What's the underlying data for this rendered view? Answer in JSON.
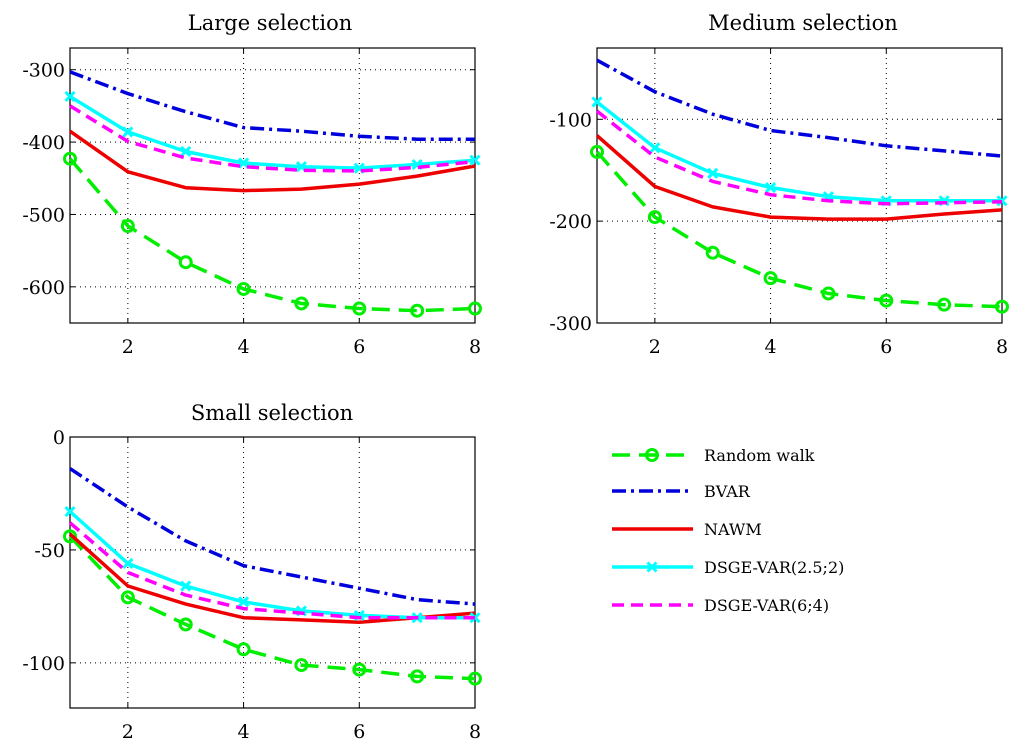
{
  "legend": {
    "entries": [
      {
        "series": "Random walk",
        "label": "Random walk"
      },
      {
        "series": "BVAR",
        "label": "BVAR"
      },
      {
        "series": "NAWM",
        "label": "NAWM"
      },
      {
        "series": "DSGE-VAR(2.5;2)",
        "label": "DSGE-VAR(2.5;2)"
      },
      {
        "series": "DSGE-VAR(6;4)",
        "label": "DSGE-VAR(6;4)"
      }
    ]
  },
  "styles": {
    "Random walk": {
      "color": "#00ee00",
      "dash": "18,9",
      "marker": "circle"
    },
    "BVAR": {
      "color": "#0000dd",
      "dash": "14,5,3,5",
      "marker": "none"
    },
    "NAWM": {
      "color": "#ee0000",
      "dash": "",
      "marker": "none"
    },
    "DSGE-VAR(2.5;2)": {
      "color": "#00ffff",
      "dash": "",
      "marker": "x"
    },
    "DSGE-VAR(6;4)": {
      "color": "#ff00ff",
      "dash": "12,7",
      "marker": "none"
    }
  },
  "chart_data": [
    {
      "type": "line",
      "title": "Large selection",
      "xlim": [
        1,
        8
      ],
      "ylim": [
        -650,
        -270
      ],
      "xticks": [
        2,
        4,
        6,
        8
      ],
      "xticklabels": [
        "2",
        "4",
        "6",
        "8"
      ],
      "yticks": [
        -600,
        -500,
        -400,
        -300
      ],
      "yticklabels": [
        "-600",
        "-500",
        "-400",
        "-300"
      ],
      "grid": true,
      "x": [
        1,
        2,
        3,
        4,
        5,
        6,
        7,
        8
      ],
      "series": [
        {
          "name": "Random walk",
          "values": [
            -423,
            -516,
            -566,
            -603,
            -623,
            -630,
            -633,
            -630
          ]
        },
        {
          "name": "BVAR",
          "values": [
            -303,
            -333,
            -358,
            -380,
            -385,
            -392,
            -396,
            -396
          ]
        },
        {
          "name": "NAWM",
          "values": [
            -385,
            -441,
            -463,
            -467,
            -465,
            -458,
            -447,
            -433
          ]
        },
        {
          "name": "DSGE-VAR(2.5;2)",
          "values": [
            -337,
            -386,
            -413,
            -429,
            -434,
            -436,
            -431,
            -425
          ]
        },
        {
          "name": "DSGE-VAR(6;4)",
          "values": [
            -350,
            -399,
            -422,
            -434,
            -439,
            -440,
            -435,
            -427
          ]
        }
      ]
    },
    {
      "type": "line",
      "title": "Medium selection",
      "xlim": [
        1,
        8
      ],
      "ylim": [
        -300,
        -30
      ],
      "xticks": [
        2,
        4,
        6,
        8
      ],
      "xticklabels": [
        "2",
        "4",
        "6",
        "8"
      ],
      "yticks": [
        -300,
        -200,
        -100
      ],
      "yticklabels": [
        "-300",
        "-200",
        "-100"
      ],
      "grid": true,
      "x": [
        1,
        2,
        3,
        4,
        5,
        6,
        7,
        8
      ],
      "series": [
        {
          "name": "Random walk",
          "values": [
            -132,
            -196,
            -231,
            -256,
            -271,
            -278,
            -282,
            -284
          ]
        },
        {
          "name": "BVAR",
          "values": [
            -42,
            -73,
            -95,
            -111,
            -118,
            -126,
            -131,
            -136
          ]
        },
        {
          "name": "NAWM",
          "values": [
            -116,
            -166,
            -186,
            -196,
            -198,
            -198,
            -193,
            -189
          ]
        },
        {
          "name": "DSGE-VAR(2.5;2)",
          "values": [
            -83,
            -128,
            -153,
            -167,
            -176,
            -180,
            -180,
            -180
          ]
        },
        {
          "name": "DSGE-VAR(6;4)",
          "values": [
            -92,
            -137,
            -161,
            -174,
            -180,
            -183,
            -182,
            -181
          ]
        }
      ]
    },
    {
      "type": "line",
      "title": "Small selection",
      "xlim": [
        1,
        8
      ],
      "ylim": [
        -120,
        0
      ],
      "xticks": [
        2,
        4,
        6,
        8
      ],
      "xticklabels": [
        "2",
        "4",
        "6",
        "8"
      ],
      "yticks": [
        -100,
        -50,
        0
      ],
      "yticklabels": [
        "-100",
        "-50",
        "0"
      ],
      "grid": true,
      "x": [
        1,
        2,
        3,
        4,
        5,
        6,
        7,
        8
      ],
      "series": [
        {
          "name": "Random walk",
          "values": [
            -44,
            -71,
            -83,
            -94,
            -101,
            -103,
            -106,
            -107
          ]
        },
        {
          "name": "BVAR",
          "values": [
            -14,
            -31,
            -46,
            -57,
            -62,
            -67,
            -72,
            -74
          ]
        },
        {
          "name": "NAWM",
          "values": [
            -43,
            -66,
            -74,
            -80,
            -81,
            -82,
            -80,
            -78
          ]
        },
        {
          "name": "DSGE-VAR(2.5;2)",
          "values": [
            -33,
            -56,
            -66,
            -73,
            -77,
            -79,
            -80,
            -80
          ]
        },
        {
          "name": "DSGE-VAR(6;4)",
          "values": [
            -38,
            -60,
            -70,
            -76,
            -78,
            -80,
            -80,
            -80
          ]
        }
      ]
    }
  ]
}
